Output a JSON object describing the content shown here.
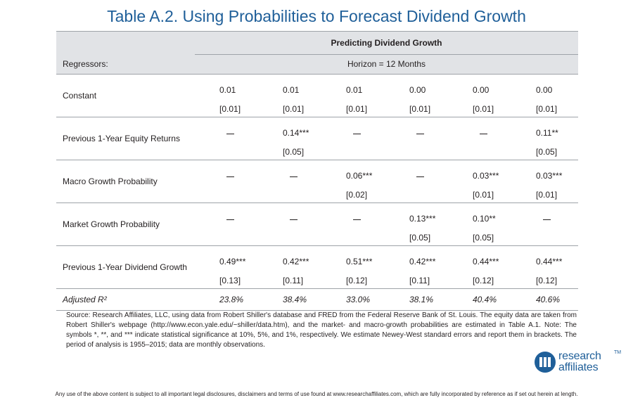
{
  "title": "Table A.2. Using Probabilities to Forecast Dividend Growth",
  "header": {
    "group_label": "Predicting Dividend Growth",
    "horizon_label": "Horizon = 12 Months",
    "regressors_label": "Regressors:"
  },
  "rows": [
    {
      "label": "Constant",
      "coef": [
        "0.01",
        "0.01",
        "0.01",
        "0.00",
        "0.00",
        "0.00"
      ],
      "se": [
        "[0.01]",
        "[0.01]",
        "[0.01]",
        "[0.01]",
        "[0.01]",
        "[0.01]"
      ]
    },
    {
      "label": "Previous 1-Year Equity Returns",
      "coef": [
        "—",
        "0.14***",
        "—",
        "—",
        "—",
        "0.11**"
      ],
      "se": [
        "",
        "[0.05]",
        "",
        "",
        "",
        "[0.05]"
      ]
    },
    {
      "label": "Macro Growth Probability",
      "coef": [
        "—",
        "—",
        "0.06***",
        "—",
        "0.03***",
        "0.03***"
      ],
      "se": [
        "",
        "",
        "[0.02]",
        "",
        "[0.01]",
        "[0.01]"
      ]
    },
    {
      "label": "Market Growth Probability",
      "coef": [
        "—",
        "—",
        "—",
        "0.13***",
        "0.10**",
        "—"
      ],
      "se": [
        "",
        "",
        "",
        "[0.05]",
        "[0.05]",
        ""
      ]
    },
    {
      "label": "Previous 1-Year Dividend Growth",
      "coef": [
        "0.49***",
        "0.42***",
        "0.51***",
        "0.42***",
        "0.44***",
        "0.44***"
      ],
      "se": [
        "[0.13]",
        "[0.11]",
        "[0.12]",
        "[0.11]",
        "[0.12]",
        "[0.12]"
      ]
    }
  ],
  "adjusted": {
    "label": "Adjusted R²",
    "values": [
      "23.8%",
      "38.4%",
      "33.0%",
      "38.1%",
      "40.4%",
      "40.6%"
    ]
  },
  "note": "Source: Research Affiliates, LLC, using data from Robert Shiller's database and FRED from the Federal Reserve Bank of St. Louis. The equity data are taken from Robert Shiller's webpage (http://www.econ.yale.edu/~shiller/data.htm), and the market- and macro-growth probabilities are estimated in Table A.1. Note: The symbols *, **, and *** indicate statistical significance at 10%, 5%, and 1%, respectively. We estimate Newey-West standard errors and report them in brackets. The period of analysis is 1955–2015; data are monthly observations.",
  "logo": {
    "line1": "research",
    "line2": "affiliates",
    "tm": "TM",
    "color": "#1f5f99"
  },
  "disclaimer": "Any use of the above content is subject to all important legal disclosures, disclaimers and terms of use found at www.researchaffiliates.com, which are fully incorporated by reference as if set out herein at length."
}
